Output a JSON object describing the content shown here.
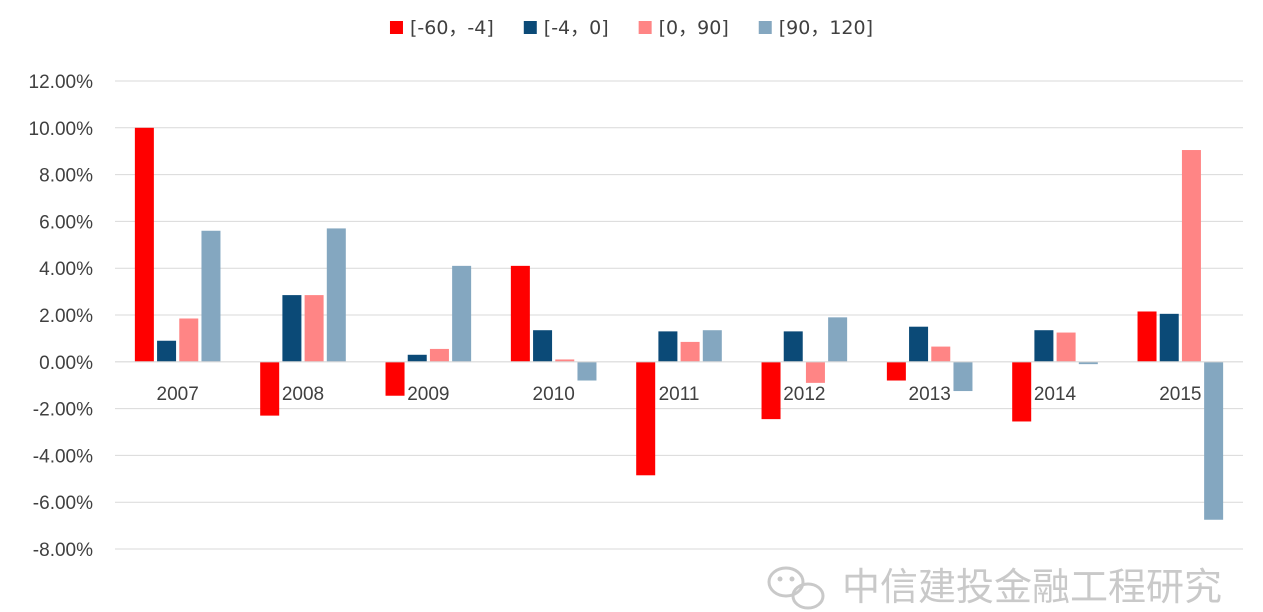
{
  "chart_data": {
    "type": "bar",
    "categories": [
      "2007",
      "2008",
      "2009",
      "2010",
      "2011",
      "2012",
      "2013",
      "2014",
      "2015"
    ],
    "series": [
      {
        "name": "[-60，-4]",
        "color": "#ff0000",
        "values": [
          10.0,
          -2.3,
          -1.45,
          4.1,
          -4.85,
          -2.45,
          -0.8,
          -2.55,
          2.15
        ]
      },
      {
        "name": "[-4，0]",
        "color": "#0b4a77",
        "values": [
          0.9,
          2.85,
          0.3,
          1.35,
          1.3,
          1.3,
          1.5,
          1.35,
          2.05
        ]
      },
      {
        "name": "[0，90]",
        "color": "#ff8585",
        "values": [
          1.85,
          2.85,
          0.55,
          0.1,
          0.85,
          -0.9,
          0.65,
          1.25,
          9.05
        ]
      },
      {
        "name": "[90，120]",
        "color": "#84a7c0",
        "values": [
          5.6,
          5.7,
          4.1,
          -0.8,
          1.35,
          1.9,
          -1.25,
          -0.1,
          -6.75
        ]
      }
    ],
    "yticks": [
      "12.00%",
      "10.00%",
      "8.00%",
      "6.00%",
      "4.00%",
      "2.00%",
      "0.00%",
      "-2.00%",
      "-4.00%",
      "-6.00%",
      "-8.00%"
    ],
    "ylim": [
      -8,
      12
    ],
    "yunit": "%",
    "grid": true,
    "legend_position": "top-center"
  },
  "watermark": {
    "text": "中信建投金融工程研究",
    "icon": "wechat-icon"
  }
}
